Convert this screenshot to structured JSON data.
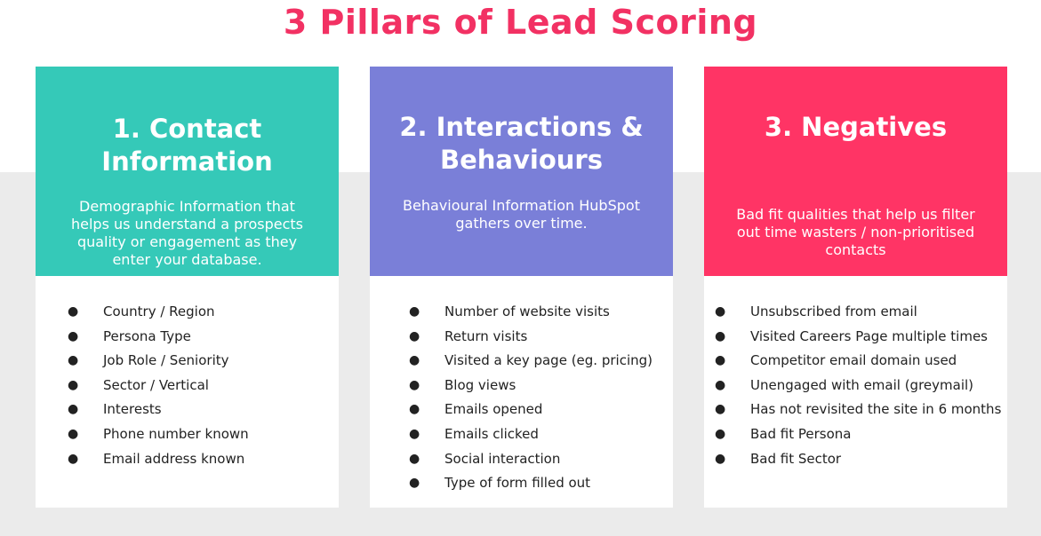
{
  "title": "3 Pillars of Lead Scoring",
  "colors": {
    "title": "#f23163",
    "teal": "#35c9b8",
    "purple": "#7a7fd8",
    "pink": "#ff3465",
    "band": "#ebebeb"
  },
  "pillars": [
    {
      "title_line1": "1. Contact",
      "title_line2": "Information",
      "description": "Demographic Information that helps us understand a prospects quality or engagement as they enter your database.",
      "items": [
        "Country / Region",
        "Persona Type",
        "Job Role / Seniority",
        "Sector / Vertical",
        "Interests",
        "Phone number known",
        "Email address known"
      ]
    },
    {
      "title_line1": "2. Interactions &",
      "title_line2": "Behaviours",
      "description": "Behavioural Information HubSpot gathers over time.",
      "items": [
        "Number of website visits",
        "Return visits",
        "Visited a key page (eg. pricing)",
        "Blog views",
        "Emails opened",
        "Emails clicked",
        "Social interaction",
        "Type of form filled out"
      ]
    },
    {
      "title_line1": "3. Negatives",
      "description": "Bad fit qualities that help us filter out time wasters / non-prioritised contacts",
      "items": [
        "Unsubscribed from email",
        "Visited Careers Page multiple times",
        "Competitor email domain used",
        "Unengaged with email (greymail)",
        "Has not revisited the site in 6 months",
        "Bad fit Persona",
        "Bad fit Sector"
      ]
    }
  ],
  "bullet": "●"
}
